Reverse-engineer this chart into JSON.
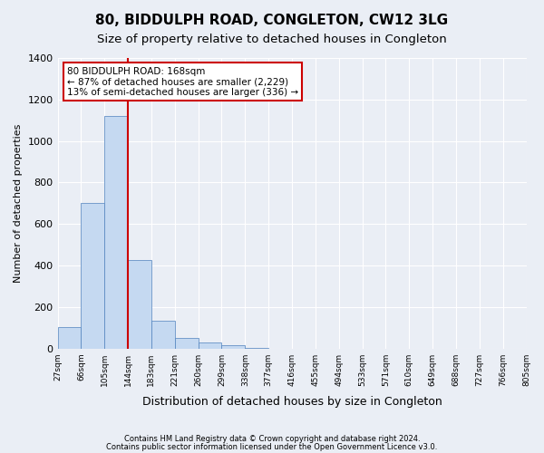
{
  "title1": "80, BIDDULPH ROAD, CONGLETON, CW12 3LG",
  "title2": "Size of property relative to detached houses in Congleton",
  "xlabel": "Distribution of detached houses by size in Congleton",
  "ylabel": "Number of detached properties",
  "footnote1": "Contains HM Land Registry data © Crown copyright and database right 2024.",
  "footnote2": "Contains public sector information licensed under the Open Government Licence v3.0.",
  "annotation_line1": "80 BIDDULPH ROAD: 168sqm",
  "annotation_line2": "← 87% of detached houses are smaller (2,229)",
  "annotation_line3": "13% of semi-detached houses are larger (336) →",
  "bar_values": [
    105,
    700,
    1120,
    425,
    135,
    50,
    30,
    15,
    5,
    0,
    0,
    0,
    0,
    0,
    0,
    0,
    0,
    0,
    0,
    0
  ],
  "categories": [
    "27sqm",
    "66sqm",
    "105sqm",
    "144sqm",
    "183sqm",
    "221sqm",
    "260sqm",
    "299sqm",
    "338sqm",
    "377sqm",
    "416sqm",
    "455sqm",
    "494sqm",
    "533sqm",
    "571sqm",
    "610sqm",
    "649sqm",
    "688sqm",
    "727sqm",
    "766sqm",
    "805sqm"
  ],
  "bar_color": "#c5d9f1",
  "bar_edge_color": "#4f81bd",
  "redline_x": 3.0,
  "ylim": [
    0,
    1400
  ],
  "yticks": [
    0,
    200,
    400,
    600,
    800,
    1000,
    1200,
    1400
  ],
  "bg_color": "#eaeef5",
  "plot_bg_color": "#eaeef5",
  "grid_color": "#ffffff",
  "title1_fontsize": 11,
  "title2_fontsize": 9.5,
  "xlabel_fontsize": 9,
  "ylabel_fontsize": 8,
  "annotation_box_color": "#ffffff",
  "annotation_box_edge": "#cc0000",
  "redline_color": "#cc0000"
}
